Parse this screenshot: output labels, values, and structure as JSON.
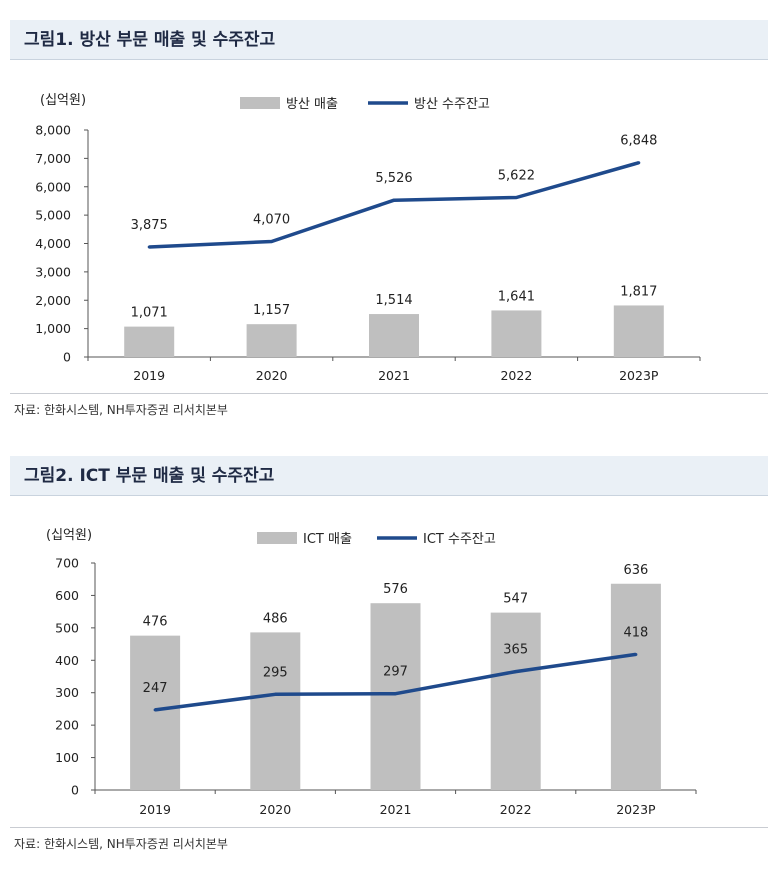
{
  "figure1": {
    "title": "그림1. 방산 부문 매출 및 수주잔고",
    "source": "자료: 한화시스템, NH투자증권 리서치본부"
  },
  "figure2": {
    "title": "그림2. ICT 부문 매출 및 수주잔고",
    "source": "자료: 한화시스템, NH투자증권 리서치본부"
  },
  "colors": {
    "bar": "#bfbfbf",
    "line": "#1f4a8c",
    "header_bg": "#eaf0f6"
  },
  "chart_data": [
    {
      "type": "bar",
      "title": "그림1. 방산 부문 매출 및 수주잔고",
      "unit_label": "(십억원)",
      "categories": [
        "2019",
        "2020",
        "2021",
        "2022",
        "2023P"
      ],
      "ylim": [
        0,
        8000
      ],
      "yticks": [
        "0",
        "1,000",
        "2,000",
        "3,000",
        "4,000",
        "5,000",
        "6,000",
        "7,000",
        "8,000"
      ],
      "legend_position": "top",
      "grid": false,
      "series": [
        {
          "name": "방산 매출",
          "kind": "bar",
          "values": [
            1071,
            1157,
            1514,
            1641,
            1817
          ],
          "labels": [
            "1,071",
            "1,157",
            "1,514",
            "1,641",
            "1,817"
          ]
        },
        {
          "name": "방산 수주잔고",
          "kind": "line",
          "values": [
            3875,
            4070,
            5526,
            5622,
            6848
          ],
          "labels": [
            "3,875",
            "4,070",
            "5,526",
            "5,622",
            "6,848"
          ]
        }
      ]
    },
    {
      "type": "bar",
      "title": "그림2. ICT 부문 매출 및 수주잔고",
      "unit_label": "(십억원)",
      "categories": [
        "2019",
        "2020",
        "2021",
        "2022",
        "2023P"
      ],
      "ylim": [
        0,
        700
      ],
      "yticks": [
        "0",
        "100",
        "200",
        "300",
        "400",
        "500",
        "600",
        "700"
      ],
      "legend_position": "top",
      "grid": false,
      "series": [
        {
          "name": "ICT 매출",
          "kind": "bar",
          "values": [
            476,
            486,
            576,
            547,
            636
          ],
          "labels": [
            "476",
            "486",
            "576",
            "547",
            "636"
          ]
        },
        {
          "name": "ICT 수주잔고",
          "kind": "line",
          "values": [
            247,
            295,
            297,
            365,
            418
          ],
          "labels": [
            "247",
            "295",
            "297",
            "365",
            "418"
          ]
        }
      ]
    }
  ]
}
